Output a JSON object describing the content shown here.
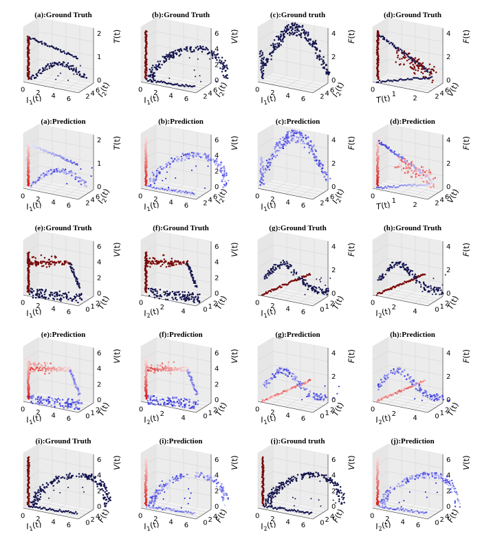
{
  "colors": {
    "truth_trail": "#7a0a0a",
    "truth_main": "#14144f",
    "pred_red": "#e01515",
    "pred_blue": "#1818d8",
    "pane": "#f2f2f2"
  },
  "chart_data": [
    {
      "type": "scatter3d",
      "id": "a-gt",
      "title": "(a):Ground Truth",
      "style": "truth",
      "kind": "tri",
      "x_label": "I_1(t)",
      "x_ticks": [
        "0",
        "2",
        "4",
        "6"
      ],
      "y_label": "I_2(t)",
      "y_ticks": [
        "2",
        "4",
        "6"
      ],
      "z_label": "T(t)",
      "z_ticks": [
        "0",
        "1",
        "2"
      ]
    },
    {
      "type": "scatter3d",
      "id": "b-gt",
      "title": "(b):Ground Truth",
      "style": "truth",
      "kind": "loop",
      "x_label": "I_1(t)",
      "x_ticks": [
        "0",
        "2",
        "4",
        "6"
      ],
      "y_label": "I_2(t)",
      "y_ticks": [
        "2",
        "4",
        "6"
      ],
      "z_label": "V(t)",
      "z_ticks": [
        "0",
        "2",
        "4",
        "6"
      ]
    },
    {
      "type": "scatter3d",
      "id": "c-gt",
      "title": "(c):Ground truth",
      "style": "truth",
      "kind": "arch",
      "x_label": "I_1(t)",
      "x_ticks": [
        "0",
        "2",
        "4",
        "6"
      ],
      "y_label": "I_2(t)",
      "y_ticks": [
        "2",
        "4",
        "6"
      ],
      "z_label": "F(t)",
      "z_ticks": [
        "0",
        "2",
        "4"
      ]
    },
    {
      "type": "scatter3d",
      "id": "d-gt",
      "title": "(d):Ground Truth",
      "style": "truth",
      "kind": "fan",
      "x_label": "T(t)",
      "x_ticks": [
        "0",
        "1",
        "2"
      ],
      "y_label": "V(t)",
      "y_ticks": [
        "2",
        "4",
        "6"
      ],
      "z_label": "F(t)",
      "z_ticks": [
        "0",
        "2",
        "4"
      ]
    },
    {
      "type": "scatter3d",
      "id": "a-pred",
      "title": "(a):Prediction",
      "style": "pred",
      "kind": "tri",
      "x_label": "I_1(t)",
      "x_ticks": [
        "0",
        "2",
        "4",
        "6"
      ],
      "y_label": "I_2(t)",
      "y_ticks": [
        "2",
        "4",
        "6"
      ],
      "z_label": "T(t)",
      "z_ticks": [
        "0",
        "1",
        "2"
      ]
    },
    {
      "type": "scatter3d",
      "id": "b-pred",
      "title": "(b):Prediction",
      "style": "pred",
      "kind": "loop",
      "x_label": "I_1(t)",
      "x_ticks": [
        "0",
        "2",
        "4",
        "6"
      ],
      "y_label": "I_2(t)",
      "y_ticks": [
        "2",
        "4",
        "6"
      ],
      "z_label": "V(t)",
      "z_ticks": [
        "0",
        "2",
        "4",
        "6"
      ]
    },
    {
      "type": "scatter3d",
      "id": "c-pred",
      "title": "(c):Prediction",
      "style": "pred",
      "kind": "arch",
      "x_label": "I_1(t)",
      "x_ticks": [
        "0",
        "2",
        "4",
        "6"
      ],
      "y_label": "I_2(t)",
      "y_ticks": [
        "2",
        "4",
        "6"
      ],
      "z_label": "F(t)",
      "z_ticks": [
        "0",
        "2",
        "4"
      ]
    },
    {
      "type": "scatter3d",
      "id": "d-pred",
      "title": "(d):Prediction",
      "style": "pred",
      "kind": "fan",
      "x_label": "T(t)",
      "x_ticks": [
        "0",
        "1",
        "2"
      ],
      "y_label": "V(t)",
      "y_ticks": [
        "2",
        "4",
        "6"
      ],
      "z_label": "F(t)",
      "z_ticks": [
        "0",
        "2",
        "4"
      ]
    },
    {
      "type": "scatter3d",
      "id": "e-gt",
      "title": "(e):Ground Truth",
      "style": "truth",
      "kind": "wedge",
      "x_label": "I_1(t)",
      "x_ticks": [
        "0",
        "2",
        "4",
        "6"
      ],
      "y_label": "T(t)",
      "y_ticks": [
        "0",
        "1",
        "2"
      ],
      "z_label": "V(t)",
      "z_ticks": [
        "0",
        "2",
        "4",
        "6"
      ]
    },
    {
      "type": "scatter3d",
      "id": "f-gt",
      "title": "(f):Ground Truth",
      "style": "truth",
      "kind": "wedge",
      "x_label": "I_2(t)",
      "x_ticks": [
        "0",
        "2",
        "4"
      ],
      "y_label": "T(t)",
      "y_ticks": [
        "0",
        "1",
        "2"
      ],
      "z_label": "V(t)",
      "z_ticks": [
        "0",
        "2",
        "4",
        "6"
      ]
    },
    {
      "type": "scatter3d",
      "id": "g-gt",
      "title": "(g):Ground Truth",
      "style": "truth",
      "kind": "ridge",
      "x_label": "I_1(t)",
      "x_ticks": [
        "0",
        "2",
        "4",
        "6"
      ],
      "y_label": "T(t)",
      "y_ticks": [
        "0",
        "1",
        "2"
      ],
      "z_label": "F(t)",
      "z_ticks": [
        "0",
        "2",
        "4"
      ]
    },
    {
      "type": "scatter3d",
      "id": "h-gt",
      "title": "(h):Ground Truth",
      "style": "truth",
      "kind": "ridge",
      "x_label": "I_2(t)",
      "x_ticks": [
        "0",
        "2",
        "4"
      ],
      "y_label": "T(t)",
      "y_ticks": [
        "0",
        "1",
        "2"
      ],
      "z_label": "F(t)",
      "z_ticks": [
        "0",
        "2",
        "4"
      ]
    },
    {
      "type": "scatter3d",
      "id": "e-pred",
      "title": "(e):Prediction",
      "style": "pred",
      "kind": "wedge",
      "x_label": "I_1(t)",
      "x_ticks": [
        "0",
        "2",
        "4",
        "6"
      ],
      "y_label": "T(t)",
      "y_ticks": [
        "0",
        "1",
        "2"
      ],
      "z_label": "V(t)",
      "z_ticks": [
        "0",
        "2",
        "4",
        "6"
      ]
    },
    {
      "type": "scatter3d",
      "id": "f-pred",
      "title": "(f):Prediction",
      "style": "pred",
      "kind": "wedge",
      "x_label": "I_2(t)",
      "x_ticks": [
        "0",
        "2",
        "4"
      ],
      "y_label": "T(t)",
      "y_ticks": [
        "0",
        "1",
        "2"
      ],
      "z_label": "V(t)",
      "z_ticks": [
        "0",
        "2",
        "4",
        "6"
      ]
    },
    {
      "type": "scatter3d",
      "id": "g-pred",
      "title": "(g):Prediction",
      "style": "pred",
      "kind": "ridge",
      "x_label": "I_1(t)",
      "x_ticks": [
        "0",
        "2",
        "4",
        "6"
      ],
      "y_label": "T(t)",
      "y_ticks": [
        "0",
        "1",
        "2"
      ],
      "z_label": "F(t)",
      "z_ticks": [
        "0",
        "2",
        "4"
      ]
    },
    {
      "type": "scatter3d",
      "id": "h-pred",
      "title": "(h):Prediction",
      "style": "pred",
      "kind": "ridge",
      "x_label": "I_2(t)",
      "x_ticks": [
        "0",
        "2",
        "4"
      ],
      "y_label": "T(t)",
      "y_ticks": [
        "0",
        "1",
        "2"
      ],
      "z_label": "F(t)",
      "z_ticks": [
        "0",
        "2",
        "4"
      ]
    },
    {
      "type": "scatter3d",
      "id": "i-gt",
      "title": "(i):Ground Truth",
      "style": "truth",
      "kind": "loop",
      "x_label": "I_1(t)",
      "x_ticks": [
        "0",
        "2",
        "4",
        "6"
      ],
      "y_label": "F(t)",
      "y_ticks": [
        "0",
        "2",
        "4"
      ],
      "z_label": "V(t)",
      "z_ticks": [
        "0",
        "2",
        "4",
        "6"
      ]
    },
    {
      "type": "scatter3d",
      "id": "i-pred",
      "title": "(i):Prediction",
      "style": "pred",
      "kind": "loop",
      "x_label": "I_1(t)",
      "x_ticks": [
        "0",
        "2",
        "4",
        "6"
      ],
      "y_label": "F(t)",
      "y_ticks": [
        "0",
        "2",
        "4"
      ],
      "z_label": "V(t)",
      "z_ticks": [
        "0",
        "2",
        "4",
        "6"
      ]
    },
    {
      "type": "scatter3d",
      "id": "j-gt",
      "title": "(j):Ground truth",
      "style": "truth",
      "kind": "loop",
      "x_label": "I_2(t)",
      "x_ticks": [
        "0",
        "2",
        "4",
        "6"
      ],
      "y_label": "F(t)",
      "y_ticks": [
        "0",
        "2",
        "4"
      ],
      "z_label": "V(t)",
      "z_ticks": [
        "0",
        "2",
        "4",
        "6"
      ]
    },
    {
      "type": "scatter3d",
      "id": "j-pred",
      "title": "(j):Prediction",
      "style": "pred",
      "kind": "loop",
      "x_label": "I_2(t)",
      "x_ticks": [
        "0",
        "2",
        "4",
        "6"
      ],
      "y_label": "F(t)",
      "y_ticks": [
        "0",
        "2",
        "4"
      ],
      "z_label": "V(t)",
      "z_ticks": [
        "0",
        "2",
        "4",
        "6"
      ]
    }
  ]
}
